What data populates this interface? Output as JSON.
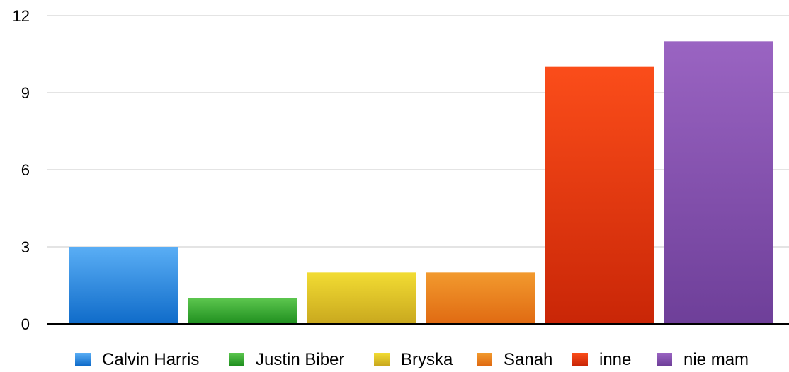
{
  "chart_data": {
    "type": "bar",
    "title": "",
    "xlabel": "",
    "ylabel": "",
    "ylim": [
      0,
      12
    ],
    "yticks": [
      0,
      3,
      6,
      9,
      12
    ],
    "grid": true,
    "legend_position": "bottom",
    "series": [
      {
        "name": "Calvin Harris",
        "value": 3,
        "color_top": "#5aaef5",
        "color_bottom": "#0f6bc9"
      },
      {
        "name": "Justin Biber",
        "value": 1,
        "color_top": "#5cc64e",
        "color_bottom": "#1f8f1f"
      },
      {
        "name": "Bryska",
        "value": 2,
        "color_top": "#f2dc33",
        "color_bottom": "#c9a81e"
      },
      {
        "name": "Sanah",
        "value": 2,
        "color_top": "#f29a2e",
        "color_bottom": "#e06a12"
      },
      {
        "name": "inne",
        "value": 10,
        "color_top": "#fb4d1a",
        "color_bottom": "#c92607"
      },
      {
        "name": "nie mam",
        "value": 11,
        "color_top": "#9a64c2",
        "color_bottom": "#6e3f99"
      }
    ]
  }
}
